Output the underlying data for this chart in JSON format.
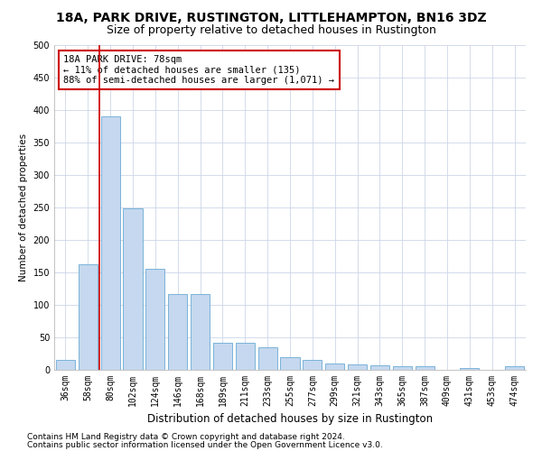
{
  "title1": "18A, PARK DRIVE, RUSTINGTON, LITTLEHAMPTON, BN16 3DZ",
  "title2": "Size of property relative to detached houses in Rustington",
  "xlabel": "Distribution of detached houses by size in Rustington",
  "ylabel": "Number of detached properties",
  "categories": [
    "36sqm",
    "58sqm",
    "80sqm",
    "102sqm",
    "124sqm",
    "146sqm",
    "168sqm",
    "189sqm",
    "211sqm",
    "233sqm",
    "255sqm",
    "277sqm",
    "299sqm",
    "321sqm",
    "343sqm",
    "365sqm",
    "387sqm",
    "409sqm",
    "431sqm",
    "453sqm",
    "474sqm"
  ],
  "values": [
    15,
    163,
    390,
    248,
    155,
    117,
    117,
    42,
    42,
    35,
    20,
    15,
    10,
    8,
    7,
    6,
    5,
    0,
    3,
    0,
    5
  ],
  "bar_color": "#c5d8ef",
  "bar_edge_color": "#6aaad4",
  "redline_x": 1.5,
  "annotation_line1": "18A PARK DRIVE: 78sqm",
  "annotation_line2": "← 11% of detached houses are smaller (135)",
  "annotation_line3": "88% of semi-detached houses are larger (1,071) →",
  "annotation_box_color": "#ffffff",
  "annotation_box_edge": "#cc0000",
  "redline_color": "#cc0000",
  "footer1": "Contains HM Land Registry data © Crown copyright and database right 2024.",
  "footer2": "Contains public sector information licensed under the Open Government Licence v3.0.",
  "ylim": [
    0,
    500
  ],
  "yticks": [
    0,
    50,
    100,
    150,
    200,
    250,
    300,
    350,
    400,
    450,
    500
  ],
  "bg_color": "#ffffff",
  "grid_color": "#ccd6e8",
  "title1_fontsize": 10,
  "title2_fontsize": 9,
  "xlabel_fontsize": 8.5,
  "ylabel_fontsize": 7.5,
  "tick_fontsize": 7,
  "annotation_fontsize": 7.5,
  "footer_fontsize": 6.5
}
